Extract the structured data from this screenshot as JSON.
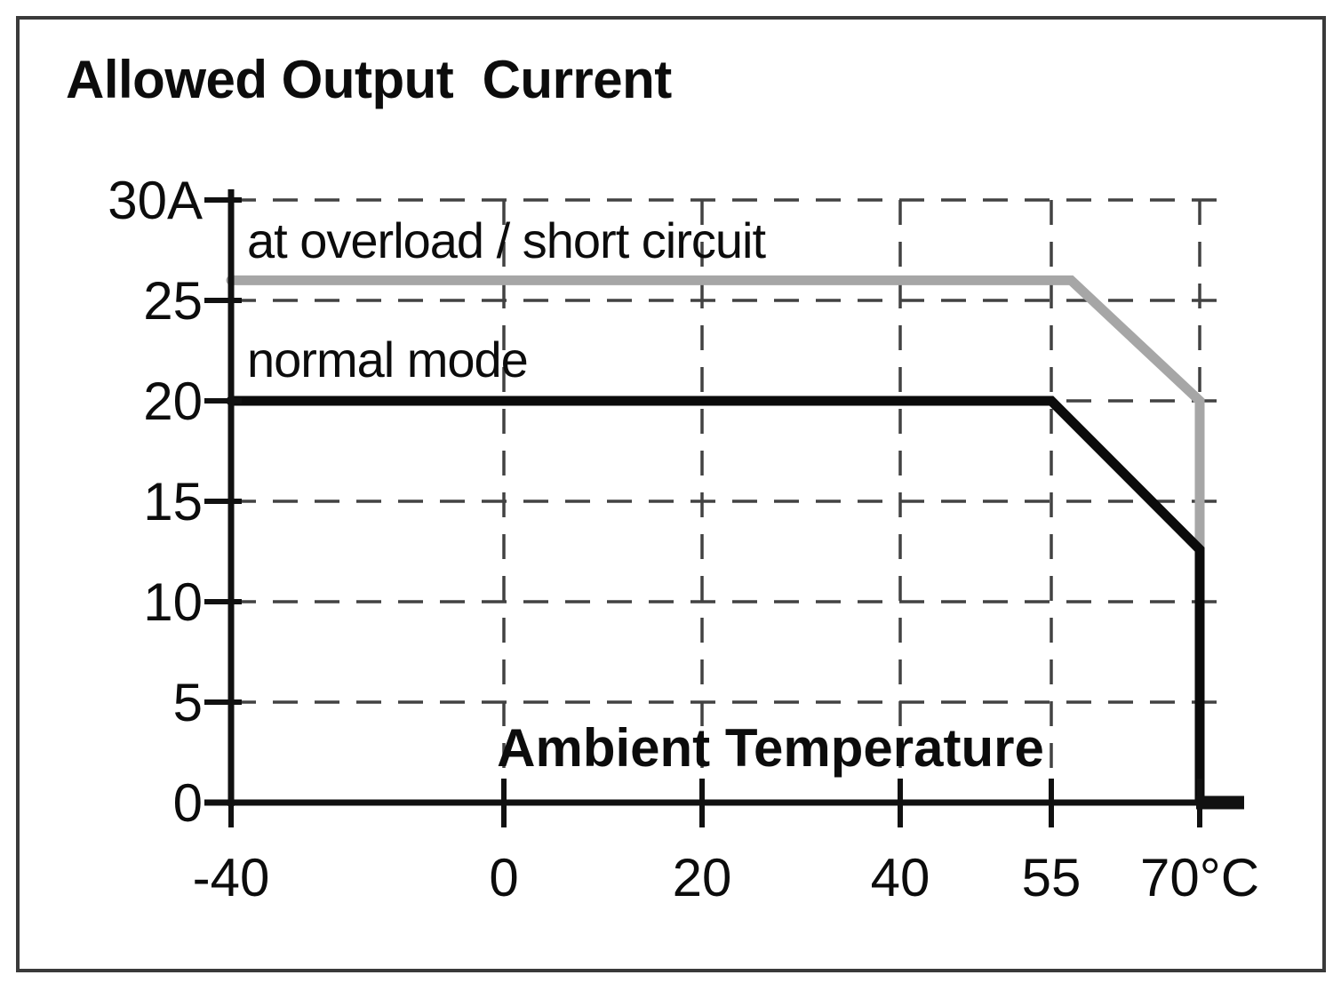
{
  "chart_data": {
    "type": "line",
    "title": "Allowed Output  Current",
    "xlabel": "Ambient Temperature",
    "x_unit": "°C",
    "y_unit": "A",
    "x_ticks": [
      -40,
      0,
      20,
      40,
      55,
      70
    ],
    "x_tick_labels": [
      "-40",
      "0",
      "20",
      "40",
      "55",
      "70°C"
    ],
    "y_ticks": [
      0,
      5,
      10,
      15,
      20,
      25,
      30
    ],
    "y_tick_labels": [
      "0",
      "5",
      "10",
      "15",
      "20",
      "25",
      "30A"
    ],
    "xlim": [
      -40,
      70
    ],
    "ylim": [
      0,
      30
    ],
    "grid": "dashed",
    "legend_position": "inline-annotations",
    "series": [
      {
        "name": "at overload / short circuit",
        "color": "#a6a6a6",
        "points": [
          [
            -40,
            26
          ],
          [
            57,
            26
          ],
          [
            70,
            20
          ],
          [
            70,
            12.6
          ]
        ]
      },
      {
        "name": "normal mode",
        "color": "#0b0b0b",
        "points": [
          [
            -40,
            20
          ],
          [
            55,
            20
          ],
          [
            70,
            12.6
          ],
          [
            70,
            0
          ]
        ]
      }
    ],
    "colors": {
      "axis": "#111111",
      "grid": "#424242",
      "frame": "#3a3a3a",
      "background": "#ffffff",
      "text": "#0c0c0c"
    }
  }
}
